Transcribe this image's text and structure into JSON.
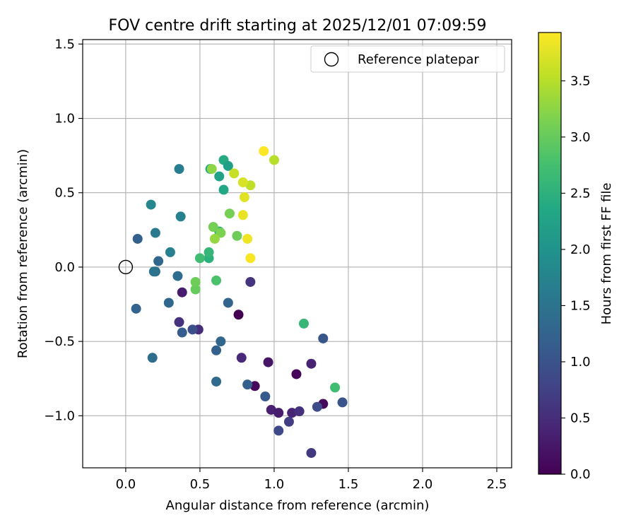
{
  "chart_data": {
    "type": "scatter",
    "title": "FOV centre drift starting at 2025/12/01 07:09:59",
    "xlabel": "Angular distance from reference (arcmin)",
    "ylabel": "Rotation from reference (arcmin)",
    "xlim": [
      -0.29,
      2.6
    ],
    "ylim": [
      -1.35,
      1.53
    ],
    "xticks": [
      0.0,
      0.5,
      1.0,
      1.5,
      2.0,
      2.5
    ],
    "xtick_labels": [
      "0.0",
      "0.5",
      "1.0",
      "1.5",
      "2.0",
      "2.5"
    ],
    "yticks": [
      -1.0,
      -0.5,
      0.0,
      0.5,
      1.0,
      1.5
    ],
    "ytick_labels": [
      "−1.0",
      "−0.5",
      "0.0",
      "0.5",
      "1.0",
      "1.5"
    ],
    "grid": true,
    "legend": {
      "label": "Reference platepar",
      "placement": "top-right"
    },
    "reference_point": {
      "x": 0.0,
      "y": 0.0
    },
    "colorbar": {
      "label": "Hours from first FF file",
      "min": 0.0,
      "max": 3.93,
      "ticks": [
        0.0,
        0.5,
        1.0,
        1.5,
        2.0,
        2.5,
        3.0,
        3.5
      ],
      "tick_labels": [
        "0.0",
        "0.5",
        "1.0",
        "1.5",
        "2.0",
        "2.5",
        "3.0",
        "3.5"
      ],
      "colormap": "viridis"
    },
    "points": [
      {
        "x": 0.76,
        "y": -0.32,
        "h": 0.0
      },
      {
        "x": 0.87,
        "y": -0.8,
        "h": 0.08
      },
      {
        "x": 1.15,
        "y": -0.72,
        "h": 0.05
      },
      {
        "x": 1.33,
        "y": -0.92,
        "h": 0.1
      },
      {
        "x": 0.38,
        "y": -0.17,
        "h": 0.3
      },
      {
        "x": 0.96,
        "y": -0.64,
        "h": 0.22
      },
      {
        "x": 1.25,
        "y": -0.65,
        "h": 0.38
      },
      {
        "x": 0.78,
        "y": -0.61,
        "h": 0.45
      },
      {
        "x": 0.49,
        "y": -0.42,
        "h": 0.5
      },
      {
        "x": 0.36,
        "y": -0.37,
        "h": 0.55
      },
      {
        "x": 0.84,
        "y": -0.1,
        "h": 0.6
      },
      {
        "x": 0.98,
        "y": -0.96,
        "h": 0.35
      },
      {
        "x": 1.03,
        "y": -0.98,
        "h": 0.3
      },
      {
        "x": 1.12,
        "y": -0.98,
        "h": 0.4
      },
      {
        "x": 1.17,
        "y": -0.97,
        "h": 0.55
      },
      {
        "x": 1.1,
        "y": -1.04,
        "h": 0.7
      },
      {
        "x": 1.25,
        "y": -1.25,
        "h": 0.65
      },
      {
        "x": 1.03,
        "y": -1.1,
        "h": 0.85
      },
      {
        "x": 1.29,
        "y": -0.94,
        "h": 0.9
      },
      {
        "x": 1.46,
        "y": -0.91,
        "h": 1.0
      },
      {
        "x": 1.33,
        "y": -0.48,
        "h": 1.05
      },
      {
        "x": 0.94,
        "y": -0.87,
        "h": 1.1
      },
      {
        "x": 0.82,
        "y": -0.79,
        "h": 1.2
      },
      {
        "x": 0.45,
        "y": -0.42,
        "h": 0.95
      },
      {
        "x": 0.38,
        "y": -0.44,
        "h": 1.15
      },
      {
        "x": 0.69,
        "y": -0.24,
        "h": 1.25
      },
      {
        "x": 0.61,
        "y": -0.56,
        "h": 1.2
      },
      {
        "x": 0.64,
        "y": -0.5,
        "h": 1.3
      },
      {
        "x": 0.61,
        "y": -0.77,
        "h": 1.35
      },
      {
        "x": 0.29,
        "y": -0.24,
        "h": 1.3
      },
      {
        "x": 0.07,
        "y": -0.28,
        "h": 1.25
      },
      {
        "x": 0.08,
        "y": 0.19,
        "h": 1.2
      },
      {
        "x": 0.22,
        "y": 0.04,
        "h": 1.3
      },
      {
        "x": 0.2,
        "y": -0.03,
        "h": 1.4
      },
      {
        "x": 0.18,
        "y": -0.61,
        "h": 1.4
      },
      {
        "x": 0.35,
        "y": -0.06,
        "h": 1.4
      },
      {
        "x": 0.19,
        "y": -0.03,
        "h": 1.5
      },
      {
        "x": 0.2,
        "y": 0.23,
        "h": 1.6
      },
      {
        "x": 0.3,
        "y": 0.1,
        "h": 1.7
      },
      {
        "x": 0.37,
        "y": 0.34,
        "h": 1.7
      },
      {
        "x": 0.17,
        "y": 0.42,
        "h": 1.8
      },
      {
        "x": 0.36,
        "y": 0.66,
        "h": 1.65
      },
      {
        "x": 0.57,
        "y": 0.66,
        "h": 2.3
      },
      {
        "x": 0.63,
        "y": 0.61,
        "h": 2.25
      },
      {
        "x": 0.66,
        "y": 0.72,
        "h": 2.4
      },
      {
        "x": 0.69,
        "y": 0.68,
        "h": 2.2
      },
      {
        "x": 0.66,
        "y": 0.52,
        "h": 2.35
      },
      {
        "x": 0.56,
        "y": 0.06,
        "h": 2.5
      },
      {
        "x": 0.56,
        "y": 0.1,
        "h": 2.6
      },
      {
        "x": 0.5,
        "y": 0.06,
        "h": 2.7
      },
      {
        "x": 0.61,
        "y": -0.09,
        "h": 2.8
      },
      {
        "x": 0.63,
        "y": 0.24,
        "h": 2.55
      },
      {
        "x": 1.2,
        "y": -0.38,
        "h": 2.6
      },
      {
        "x": 1.41,
        "y": -0.81,
        "h": 2.7
      },
      {
        "x": 0.47,
        "y": -0.15,
        "h": 3.0
      },
      {
        "x": 0.47,
        "y": -0.1,
        "h": 3.05
      },
      {
        "x": 0.59,
        "y": 0.27,
        "h": 3.1
      },
      {
        "x": 0.64,
        "y": 0.23,
        "h": 3.15
      },
      {
        "x": 0.7,
        "y": 0.36,
        "h": 3.1
      },
      {
        "x": 0.75,
        "y": 0.21,
        "h": 3.05
      },
      {
        "x": 0.6,
        "y": 0.19,
        "h": 3.3
      },
      {
        "x": 0.58,
        "y": 0.66,
        "h": 3.25
      },
      {
        "x": 0.73,
        "y": 0.63,
        "h": 3.6
      },
      {
        "x": 0.84,
        "y": 0.55,
        "h": 3.55
      },
      {
        "x": 0.79,
        "y": 0.57,
        "h": 3.7
      },
      {
        "x": 0.8,
        "y": 0.47,
        "h": 3.75
      },
      {
        "x": 0.79,
        "y": 0.35,
        "h": 3.8
      },
      {
        "x": 0.82,
        "y": 0.19,
        "h": 3.85
      },
      {
        "x": 0.84,
        "y": 0.06,
        "h": 3.9
      },
      {
        "x": 0.93,
        "y": 0.78,
        "h": 3.93
      },
      {
        "x": 1.0,
        "y": 0.72,
        "h": 3.5
      }
    ]
  }
}
